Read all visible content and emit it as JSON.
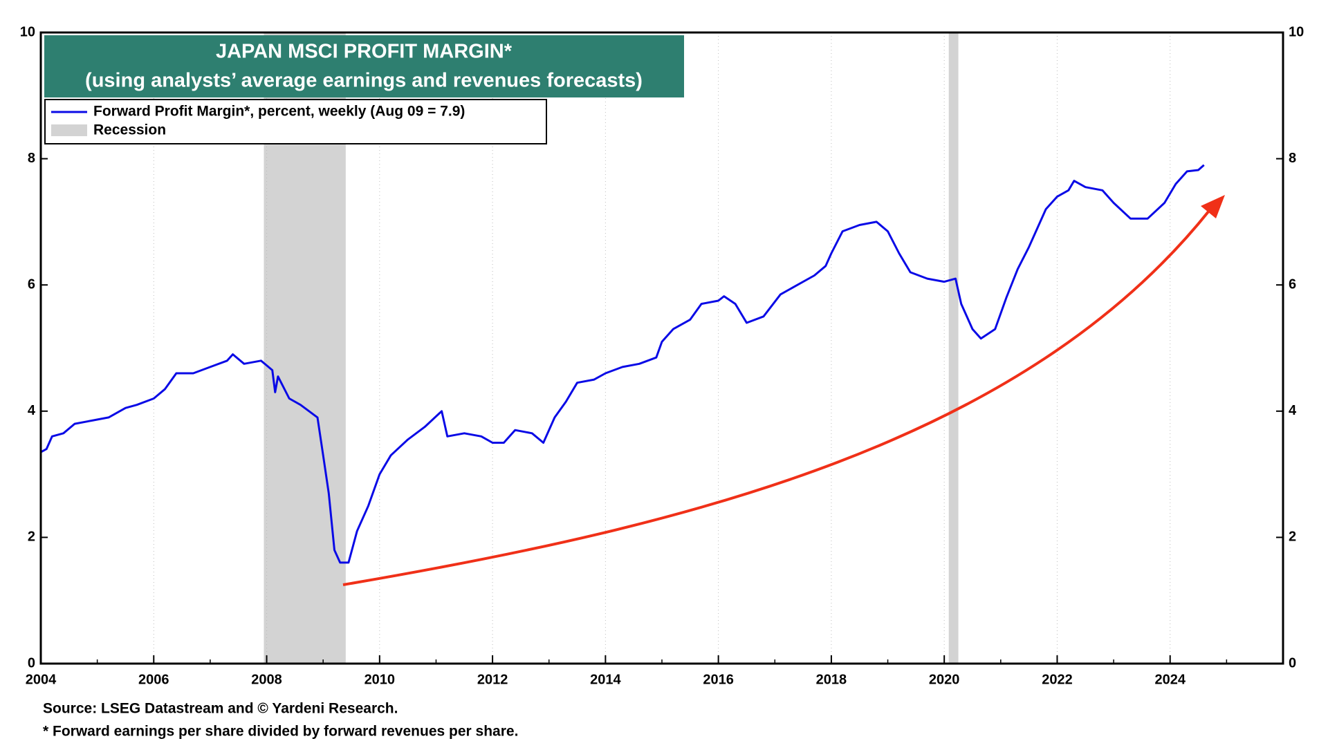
{
  "chart_data": {
    "type": "line",
    "title": "JAPAN MSCI PROFIT MARGIN*",
    "subtitle": "(using analysts’ average earnings and revenues forecasts)",
    "series": [
      {
        "name": "Forward Profit Margin*, percent, weekly (Aug 09 = 7.9)",
        "color": "#0a0ae6",
        "x": [
          2004.0,
          2004.1,
          2004.2,
          2004.4,
          2004.6,
          2004.9,
          2005.2,
          2005.5,
          2005.7,
          2006.0,
          2006.2,
          2006.4,
          2006.7,
          2007.0,
          2007.3,
          2007.4,
          2007.6,
          2007.9,
          2008.1,
          2008.15,
          2008.2,
          2008.4,
          2008.6,
          2008.9,
          2009.0,
          2009.1,
          2009.2,
          2009.3,
          2009.45,
          2009.6,
          2009.8,
          2010.0,
          2010.2,
          2010.5,
          2010.8,
          2011.1,
          2011.2,
          2011.5,
          2011.8,
          2012.0,
          2012.2,
          2012.4,
          2012.7,
          2012.9,
          2013.1,
          2013.3,
          2013.5,
          2013.8,
          2014.0,
          2014.3,
          2014.6,
          2014.9,
          2015.0,
          2015.2,
          2015.5,
          2015.7,
          2016.0,
          2016.1,
          2016.3,
          2016.5,
          2016.8,
          2017.1,
          2017.4,
          2017.7,
          2017.9,
          2018.0,
          2018.2,
          2018.5,
          2018.8,
          2019.0,
          2019.2,
          2019.4,
          2019.7,
          2020.0,
          2020.2,
          2020.3,
          2020.5,
          2020.65,
          2020.9,
          2021.1,
          2021.3,
          2021.5,
          2021.8,
          2022.0,
          2022.2,
          2022.3,
          2022.5,
          2022.8,
          2023.0,
          2023.3,
          2023.6,
          2023.9,
          2024.1,
          2024.3,
          2024.5,
          2024.6
        ],
        "values": [
          3.35,
          3.4,
          3.6,
          3.65,
          3.8,
          3.85,
          3.9,
          4.05,
          4.1,
          4.2,
          4.35,
          4.6,
          4.6,
          4.7,
          4.8,
          4.9,
          4.75,
          4.8,
          4.65,
          4.3,
          4.55,
          4.2,
          4.1,
          3.9,
          3.3,
          2.7,
          1.8,
          1.6,
          1.6,
          2.1,
          2.5,
          3.0,
          3.3,
          3.55,
          3.75,
          4.0,
          3.6,
          3.65,
          3.6,
          3.5,
          3.5,
          3.7,
          3.65,
          3.5,
          3.9,
          4.15,
          4.45,
          4.5,
          4.6,
          4.7,
          4.75,
          4.85,
          5.1,
          5.3,
          5.45,
          5.7,
          5.75,
          5.82,
          5.7,
          5.4,
          5.5,
          5.85,
          6.0,
          6.15,
          6.3,
          6.5,
          6.85,
          6.95,
          7.0,
          6.85,
          6.5,
          6.2,
          6.1,
          6.05,
          6.1,
          5.7,
          5.3,
          5.15,
          5.3,
          5.8,
          6.25,
          6.6,
          7.2,
          7.4,
          7.5,
          7.65,
          7.55,
          7.5,
          7.3,
          7.05,
          7.05,
          7.3,
          7.6,
          7.8,
          7.82,
          7.9
        ]
      }
    ],
    "recession": {
      "name": "Recession",
      "color": "#d3d3d3",
      "periods": [
        [
          2007.95,
          2009.4
        ],
        [
          2020.08,
          2020.25
        ]
      ]
    },
    "xlim": [
      2004,
      2026
    ],
    "xticks": [
      2004,
      2006,
      2008,
      2010,
      2012,
      2014,
      2016,
      2018,
      2020,
      2022,
      2024
    ],
    "ylim": [
      0,
      10
    ],
    "yticks": [
      0,
      2,
      4,
      6,
      8,
      10
    ],
    "grid": "x",
    "notes": [
      "Source: LSEG Datastream and © Yardeni Research.",
      "* Forward earnings per share divided by forward revenues per share."
    ]
  }
}
